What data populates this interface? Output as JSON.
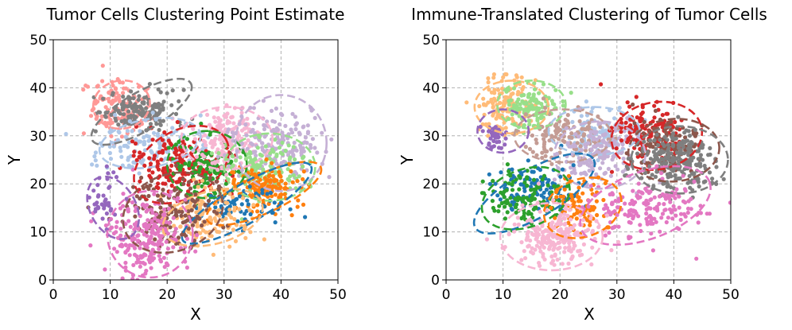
{
  "colors": {
    "tab:blue": "#1f77b4",
    "light-blue": "#aec7e8",
    "tab:orange": "#ff7f0e",
    "light-orange": "#ffbb78",
    "tab:green": "#2ca02c",
    "light-green": "#98df8a",
    "tab:red": "#d62728",
    "tab:purple": "#9467bd",
    "light-purple": "#c5b0d5",
    "tab:brown": "#8c564b",
    "light-brown": "#c49c94",
    "tab:pink": "#e377c2",
    "light-pink": "#f7b6d2",
    "tab:gray": "#7f7f7f",
    "salmon": "#ff9896"
  },
  "chart_data": [
    {
      "type": "scatter",
      "title": "Tumor Cells Clustering Point Estimate",
      "xlabel": "X",
      "ylabel": "Y",
      "xlim": [
        0,
        50
      ],
      "ylim": [
        0,
        50
      ],
      "xticks": [
        0,
        10,
        20,
        30,
        40,
        50
      ],
      "yticks": [
        0,
        10,
        20,
        30,
        40,
        50
      ],
      "grid": true,
      "clusters": [
        {
          "color": "#ff9896",
          "center": [
            11.5,
            36
          ],
          "spread": [
            2.5,
            3.0
          ],
          "n": 130,
          "ellipse": {
            "center": [
              12,
              36.5
            ],
            "width": 10,
            "height": 10,
            "angle": 10
          }
        },
        {
          "color": "#7f7f7f",
          "center": [
            15.5,
            35
          ],
          "spread": [
            3.5,
            2.0
          ],
          "n": 160,
          "ellipse": {
            "center": [
              15.5,
              35
            ],
            "width": 20,
            "height": 8,
            "angle": 30
          }
        },
        {
          "color": "#aec7e8",
          "center": [
            17,
            28
          ],
          "spread": [
            5.0,
            2.5
          ],
          "n": 120,
          "ellipse": {
            "center": [
              17,
              28.5
            ],
            "width": 18,
            "height": 10,
            "angle": 10
          }
        },
        {
          "color": "#d62728",
          "center": [
            22,
            24
          ],
          "spread": [
            4.0,
            3.0
          ],
          "n": 190,
          "ellipse": {
            "center": [
              22.5,
              24
            ],
            "width": 18,
            "height": 14,
            "angle": 30
          }
        },
        {
          "color": "#2ca02c",
          "center": [
            27,
            23
          ],
          "spread": [
            3.0,
            3.0
          ],
          "n": 110,
          "ellipse": {
            "center": [
              27,
              24
            ],
            "width": 14,
            "height": 14,
            "angle": 0
          }
        },
        {
          "color": "#f7b6d2",
          "center": [
            30.5,
            29.5
          ],
          "spread": [
            3.0,
            3.0
          ],
          "n": 160,
          "ellipse": {
            "center": [
              30.5,
              29.5
            ],
            "width": 16,
            "height": 13,
            "angle": 0
          }
        },
        {
          "color": "#c5b0d5",
          "center": [
            39,
            28
          ],
          "spread": [
            4.0,
            4.0
          ],
          "n": 180,
          "ellipse": {
            "center": [
              40,
              28.5
            ],
            "width": 16,
            "height": 20,
            "angle": 0
          }
        },
        {
          "color": "#98df8a",
          "center": [
            37,
            23
          ],
          "spread": [
            4.0,
            3.0
          ],
          "n": 140,
          "ellipse": {
            "center": [
              38,
              23.5
            ],
            "width": 16,
            "height": 14,
            "angle": 0
          }
        },
        {
          "color": "#ff7f0e",
          "center": [
            37,
            19
          ],
          "spread": [
            3.0,
            2.5
          ],
          "n": 140,
          "ellipse": {
            "center": [
              37,
              18
            ],
            "width": 22,
            "height": 8,
            "angle": 25
          }
        },
        {
          "color": "#1f77b4",
          "center": [
            33,
            16
          ],
          "spread": [
            4.0,
            2.0
          ],
          "n": 70,
          "ellipse": {
            "center": [
              34,
              16
            ],
            "width": 26,
            "height": 8,
            "angle": 30
          }
        },
        {
          "color": "#ffbb78",
          "center": [
            27,
            13
          ],
          "spread": [
            4.0,
            3.0
          ],
          "n": 150,
          "ellipse": {
            "center": [
              28,
              13
            ],
            "width": 18,
            "height": 11,
            "angle": 15
          }
        },
        {
          "color": "#8c564b",
          "center": [
            21,
            14
          ],
          "spread": [
            4.0,
            4.0
          ],
          "n": 160,
          "ellipse": {
            "center": [
              21,
              14
            ],
            "width": 18,
            "height": 16,
            "angle": 20
          }
        },
        {
          "color": "#e377c2",
          "center": [
            16,
            9
          ],
          "spread": [
            3.5,
            4.0
          ],
          "n": 230,
          "ellipse": {
            "center": [
              17,
              9.5
            ],
            "width": 15,
            "height": 18,
            "angle": 0
          }
        },
        {
          "color": "#9467bd",
          "center": [
            9,
            17
          ],
          "spread": [
            1.5,
            3.0
          ],
          "n": 40,
          "ellipse": {
            "center": [
              10.5,
              15
            ],
            "width": 8,
            "height": 14,
            "angle": 30
          }
        }
      ]
    },
    {
      "type": "scatter",
      "title": "Immune-Translated Clustering of Tumor Cells",
      "xlabel": "X",
      "ylabel": "Y",
      "xlim": [
        0,
        50
      ],
      "ylim": [
        0,
        50
      ],
      "xticks": [
        0,
        10,
        20,
        30,
        40,
        50
      ],
      "yticks": [
        0,
        10,
        20,
        30,
        40,
        50
      ],
      "grid": true,
      "clusters": [
        {
          "color": "#ffbb78",
          "center": [
            10.5,
            36
          ],
          "spread": [
            2.5,
            3.0
          ],
          "n": 130,
          "ellipse": {
            "center": [
              11.5,
              36
            ],
            "width": 13,
            "height": 11,
            "angle": 0
          }
        },
        {
          "color": "#98df8a",
          "center": [
            15,
            36
          ],
          "spread": [
            2.5,
            2.5
          ],
          "n": 120,
          "ellipse": {
            "center": [
              15,
              36.5
            ],
            "width": 12,
            "height": 10,
            "angle": 0
          }
        },
        {
          "color": "#9467bd",
          "center": [
            8.5,
            30
          ],
          "spread": [
            1.0,
            1.5
          ],
          "n": 40,
          "ellipse": {
            "center": [
              10,
              31
            ],
            "width": 9,
            "height": 9,
            "angle": 0
          }
        },
        {
          "color": "#aec7e8",
          "center": [
            26,
            31
          ],
          "spread": [
            3.0,
            2.5
          ],
          "n": 100,
          "ellipse": {
            "center": [
              26,
              31
            ],
            "width": 16,
            "height": 10,
            "angle": 0
          }
        },
        {
          "color": "#c49c94",
          "center": [
            20,
            30
          ],
          "spread": [
            4.0,
            2.5
          ],
          "n": 130,
          "ellipse": {
            "center": [
              20.5,
              30
            ],
            "width": 17,
            "height": 11,
            "angle": 0
          }
        },
        {
          "color": "#c5b0d5",
          "center": [
            27,
            26
          ],
          "spread": [
            4.0,
            3.0
          ],
          "n": 160,
          "ellipse": {
            "center": [
              27,
              26
            ],
            "width": 16,
            "height": 14,
            "angle": 0
          }
        },
        {
          "color": "#d62728",
          "center": [
            35,
            31
          ],
          "spread": [
            3.0,
            3.0
          ],
          "n": 150,
          "ellipse": {
            "center": [
              37,
              30
            ],
            "width": 16,
            "height": 14,
            "angle": 10
          }
        },
        {
          "color": "#8c564b",
          "center": [
            39,
            28
          ],
          "spread": [
            3.0,
            3.0
          ],
          "n": 110,
          "ellipse": {
            "center": [
              40,
              27
            ],
            "width": 16,
            "height": 13,
            "angle": 5
          }
        },
        {
          "color": "#7f7f7f",
          "center": [
            40.5,
            25
          ],
          "spread": [
            3.5,
            3.0
          ],
          "n": 250,
          "ellipse": {
            "center": [
              41,
              25
            ],
            "width": 17,
            "height": 14,
            "angle": 0
          }
        },
        {
          "color": "#1f77b4",
          "center": [
            16,
            19
          ],
          "spread": [
            4.0,
            2.5
          ],
          "n": 110,
          "ellipse": {
            "center": [
              15.5,
              18
            ],
            "width": 24,
            "height": 10,
            "angle": 30
          }
        },
        {
          "color": "#2ca02c",
          "center": [
            13.5,
            17
          ],
          "spread": [
            3.0,
            3.0
          ],
          "n": 110,
          "ellipse": {
            "center": [
              14,
              17
            ],
            "width": 16,
            "height": 12,
            "angle": 20
          }
        },
        {
          "color": "#ff7f0e",
          "center": [
            23,
            15
          ],
          "spread": [
            3.0,
            3.0
          ],
          "n": 90,
          "ellipse": {
            "center": [
              24,
              15
            ],
            "width": 14,
            "height": 12,
            "angle": 20
          }
        },
        {
          "color": "#e377c2",
          "center": [
            35,
            15
          ],
          "spread": [
            5.0,
            3.0
          ],
          "n": 170,
          "ellipse": {
            "center": [
              35,
              15.5
            ],
            "width": 24,
            "height": 14,
            "angle": 20
          }
        },
        {
          "color": "#f7b6d2",
          "center": [
            19,
            9
          ],
          "spread": [
            3.5,
            3.0
          ],
          "n": 230,
          "ellipse": {
            "center": [
              18.5,
              9
            ],
            "width": 18,
            "height": 14,
            "angle": 0
          }
        }
      ]
    }
  ]
}
